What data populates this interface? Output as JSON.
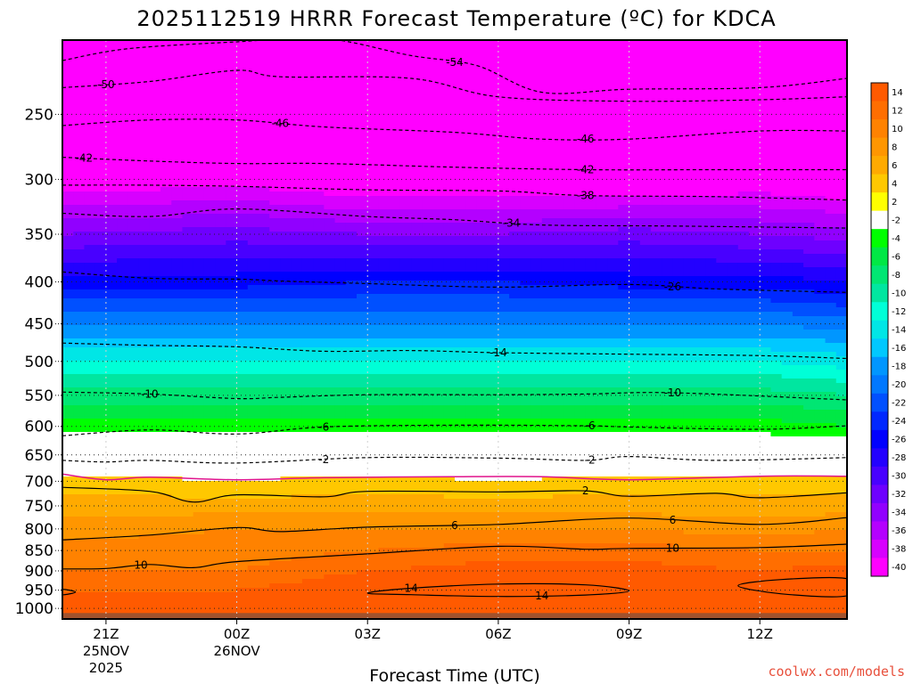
{
  "chart_data": {
    "type": "contour",
    "title": "2025112519 HRRR Forecast Temperature (ºC) for KDCA",
    "xlabel": "Forecast Time (UTC)",
    "ylabel": "",
    "credit": "coolwx.com/models",
    "x_hours": [
      -4,
      0,
      3,
      6,
      9,
      12,
      14
    ],
    "x_ticks": [
      {
        "hour": -3,
        "label": "21Z",
        "date": "25NOV",
        "year": "2025"
      },
      {
        "hour": 0,
        "label": "00Z",
        "date": "26NOV",
        "year": ""
      },
      {
        "hour": 3,
        "label": "03Z",
        "date": "",
        "year": ""
      },
      {
        "hour": 6,
        "label": "06Z",
        "date": "",
        "year": ""
      },
      {
        "hour": 9,
        "label": "09Z",
        "date": "",
        "year": ""
      },
      {
        "hour": 12,
        "label": "12Z",
        "date": "",
        "year": ""
      }
    ],
    "y_ticks": [
      {
        "label": "250",
        "p": 250
      },
      {
        "label": "300",
        "p": 300
      },
      {
        "label": "350",
        "p": 350
      },
      {
        "label": "400",
        "p": 400
      },
      {
        "label": "450",
        "p": 450
      },
      {
        "label": "500",
        "p": 500
      },
      {
        "label": "550",
        "p": 550
      },
      {
        "label": "600",
        "p": 600
      },
      {
        "label": "650",
        "p": 650
      },
      {
        "label": "700",
        "p": 700
      },
      {
        "label": "750",
        "p": 750
      },
      {
        "label": "800",
        "p": 800
      },
      {
        "label": "850",
        "p": 850
      },
      {
        "label": "900",
        "p": 900
      },
      {
        "label": "950",
        "p": 950
      },
      {
        "label": "1000",
        "p": 1000
      }
    ],
    "levels_hpa": [
      200,
      250,
      300,
      350,
      400,
      450,
      500,
      550,
      600,
      650,
      700,
      750,
      800,
      850,
      900,
      950,
      1000,
      1025
    ],
    "temperature_c": [
      [
        -57,
        -56,
        -58,
        -57,
        -57,
        -57,
        -57
      ],
      [
        -50,
        -49,
        -48,
        -48,
        -48,
        -48,
        -49
      ],
      [
        -42,
        -41,
        -43,
        -43,
        -43,
        -42,
        -43
      ],
      [
        -34,
        -33,
        -34,
        -34,
        -33,
        -34,
        -35
      ],
      [
        -27,
        -27,
        -26,
        -26,
        -27,
        -27,
        -28
      ],
      [
        -20,
        -20,
        -20,
        -20,
        -20,
        -20,
        -21
      ],
      [
        -14,
        -14,
        -14,
        -14,
        -14,
        -14,
        -15
      ],
      [
        -9,
        -9,
        -9,
        -9,
        -9,
        -9,
        -10
      ],
      [
        -5,
        -5,
        -5,
        -5,
        -5,
        -5,
        -6
      ],
      [
        -1,
        -1,
        -1,
        -1,
        -1,
        -1,
        -1
      ],
      [
        3,
        2,
        3,
        2,
        3,
        3,
        3
      ],
      [
        5,
        5,
        5,
        5,
        5,
        5,
        5
      ],
      [
        7,
        8,
        8,
        8,
        8,
        7,
        8
      ],
      [
        9,
        9,
        10,
        11,
        11,
        10,
        10
      ],
      [
        10,
        10,
        12,
        13,
        13,
        12,
        13
      ],
      [
        12,
        12,
        14,
        15,
        15,
        13,
        15
      ],
      [
        13,
        13,
        14,
        14,
        14,
        13,
        14
      ],
      [
        13,
        13,
        14,
        14,
        14,
        13,
        14
      ]
    ],
    "surface_hpa": 1013,
    "colorbar": {
      "labels": [
        "14",
        "12",
        "10",
        "8",
        "6",
        "4",
        "2",
        "-2",
        "-4",
        "-6",
        "-8",
        "-10",
        "-12",
        "-14",
        "-16",
        "-18",
        "-20",
        "-22",
        "-24",
        "-26",
        "-28",
        "-30",
        "-32",
        "-34",
        "-36",
        "-38",
        "-40"
      ],
      "colors": [
        "#ff5a00",
        "#ff6e00",
        "#ff8200",
        "#ff9600",
        "#ffaa00",
        "#ffc800",
        "#ffff00",
        "#ffffff",
        "#00ff00",
        "#00e845",
        "#00e673",
        "#00e6a0",
        "#00ffd7",
        "#00e6e6",
        "#00c8ff",
        "#0096ff",
        "#0078ff",
        "#0050ff",
        "#0028ff",
        "#0000ff",
        "#2300ff",
        "#4800ff",
        "#6e00ff",
        "#9100ff",
        "#b400ff",
        "#d700ff",
        "#ff00ff"
      ]
    },
    "contours": [
      {
        "value": -54,
        "label": "-54",
        "dashed": true,
        "points": [
          [
            -4,
            215
          ],
          [
            -2.5,
            208
          ],
          [
            0,
            204
          ],
          [
            2,
            202
          ],
          [
            4,
            212
          ],
          [
            5.5,
            218
          ],
          [
            7,
            235
          ],
          [
            9,
            233
          ],
          [
            12,
            232
          ],
          [
            14,
            226
          ]
        ]
      },
      {
        "value": -50,
        "label": "-50",
        "dashed": true,
        "points": [
          [
            -4,
            232
          ],
          [
            -2,
            228
          ],
          [
            0,
            221
          ],
          [
            1,
            225
          ],
          [
            4,
            226
          ],
          [
            6,
            238
          ],
          [
            9,
            241
          ],
          [
            12,
            240
          ],
          [
            14,
            238
          ]
        ]
      },
      {
        "value": -46,
        "label": "-46",
        "dashed": true,
        "points": [
          [
            -4,
            258
          ],
          [
            -2,
            254
          ],
          [
            0,
            254
          ],
          [
            2,
            259
          ],
          [
            5,
            263
          ],
          [
            7,
            268
          ],
          [
            9,
            268
          ],
          [
            12,
            262
          ],
          [
            14,
            262
          ]
        ]
      },
      {
        "value": -42,
        "label": "-42",
        "dashed": true,
        "points": [
          [
            -4,
            282
          ],
          [
            -2,
            285
          ],
          [
            0,
            287
          ],
          [
            2,
            287
          ],
          [
            5,
            290
          ],
          [
            8,
            292
          ],
          [
            11,
            292
          ],
          [
            14,
            292
          ]
        ]
      },
      {
        "value": -38,
        "label": "-38",
        "dashed": true,
        "points": [
          [
            -4,
            305
          ],
          [
            -2,
            305
          ],
          [
            0,
            306
          ],
          [
            3,
            309
          ],
          [
            6,
            310
          ],
          [
            8,
            314
          ],
          [
            11,
            315
          ],
          [
            14,
            318
          ]
        ]
      },
      {
        "value": -34,
        "label": "-34",
        "dashed": true,
        "points": [
          [
            -4,
            330
          ],
          [
            -2,
            333
          ],
          [
            0,
            326
          ],
          [
            3,
            333
          ],
          [
            5,
            336
          ],
          [
            7,
            341
          ],
          [
            10,
            342
          ],
          [
            14,
            344
          ]
        ]
      },
      {
        "value": -26,
        "label": "-26",
        "dashed": true,
        "points": [
          [
            -4,
            389
          ],
          [
            -2,
            396
          ],
          [
            0,
            397
          ],
          [
            1,
            399
          ],
          [
            3,
            402
          ],
          [
            6,
            406
          ],
          [
            9,
            403
          ],
          [
            11,
            408
          ],
          [
            14,
            412
          ]
        ]
      },
      {
        "value": -14,
        "label": "-14",
        "dashed": true,
        "points": [
          [
            -4,
            475
          ],
          [
            -2,
            478
          ],
          [
            0,
            480
          ],
          [
            2,
            486
          ],
          [
            4,
            485
          ],
          [
            6,
            488
          ],
          [
            9,
            490
          ],
          [
            12,
            492
          ],
          [
            14,
            496
          ]
        ]
      },
      {
        "value": -10,
        "label": "-10",
        "dashed": true,
        "points": [
          [
            -4,
            545
          ],
          [
            -2,
            548
          ],
          [
            0,
            555
          ],
          [
            1,
            553
          ],
          [
            3,
            549
          ],
          [
            6,
            549
          ],
          [
            8,
            548
          ],
          [
            10,
            546
          ],
          [
            14,
            557
          ]
        ]
      },
      {
        "value": -6,
        "label": "-6",
        "dashed": true,
        "points": [
          [
            -4,
            616
          ],
          [
            -2,
            606
          ],
          [
            0,
            613
          ],
          [
            2,
            601
          ],
          [
            5,
            598
          ],
          [
            8,
            599
          ],
          [
            9,
            601
          ],
          [
            12,
            605
          ],
          [
            14,
            599
          ]
        ]
      },
      {
        "value": -2,
        "label": "-2",
        "dashed": true,
        "points": [
          [
            -4,
            660
          ],
          [
            -3,
            663
          ],
          [
            -2,
            660
          ],
          [
            0,
            665
          ],
          [
            3,
            655
          ],
          [
            6,
            656
          ],
          [
            8,
            660
          ],
          [
            9,
            653
          ],
          [
            11,
            660
          ],
          [
            14,
            655
          ]
        ]
      },
      {
        "value": 0,
        "label": "",
        "dashed": false,
        "color": "#e0148c",
        "points": [
          [
            -4,
            686
          ],
          [
            -3,
            697
          ],
          [
            -2,
            692
          ],
          [
            0,
            697
          ],
          [
            2,
            693
          ],
          [
            5,
            691
          ],
          [
            7,
            691
          ],
          [
            9,
            697
          ],
          [
            12,
            690
          ],
          [
            14,
            690
          ]
        ]
      },
      {
        "value": 2,
        "label": "2",
        "dashed": false,
        "points": [
          [
            -4,
            712
          ],
          [
            -2,
            720
          ],
          [
            -1,
            742
          ],
          [
            0,
            727
          ],
          [
            2,
            731
          ],
          [
            3,
            720
          ],
          [
            6,
            721
          ],
          [
            8,
            719
          ],
          [
            9,
            730
          ],
          [
            11,
            724
          ],
          [
            12,
            733
          ],
          [
            14,
            723
          ]
        ]
      },
      {
        "value": 6,
        "label": "6",
        "dashed": false,
        "points": [
          [
            -4,
            825
          ],
          [
            -2,
            814
          ],
          [
            0,
            797
          ],
          [
            1,
            806
          ],
          [
            3,
            796
          ],
          [
            6,
            790
          ],
          [
            9,
            776
          ],
          [
            12,
            790
          ],
          [
            14,
            775
          ]
        ]
      },
      {
        "value": 10,
        "label": "10",
        "dashed": false,
        "points": [
          [
            -4,
            895
          ],
          [
            -3,
            894
          ],
          [
            -2,
            884
          ],
          [
            -1,
            892
          ],
          [
            0,
            877
          ],
          [
            3,
            858
          ],
          [
            6,
            840
          ],
          [
            8,
            847
          ],
          [
            9,
            845
          ],
          [
            12,
            843
          ],
          [
            14,
            835
          ]
        ]
      },
      {
        "value": 14,
        "label": "14",
        "dashed": false,
        "closed": true,
        "points": [
          [
            3,
            958
          ],
          [
            4,
            945
          ],
          [
            6,
            934
          ],
          [
            8,
            936
          ],
          [
            9,
            952
          ],
          [
            8,
            963
          ],
          [
            6,
            967
          ],
          [
            4,
            962
          ]
        ]
      },
      {
        "value": 14,
        "label": "",
        "dashed": false,
        "closed": true,
        "points": [
          [
            11.5,
            938
          ],
          [
            12.5,
            922
          ],
          [
            14,
            920
          ],
          [
            14,
            965
          ],
          [
            12.5,
            960
          ]
        ]
      },
      {
        "value": 14,
        "label": "",
        "dashed": false,
        "closed": true,
        "points": [
          [
            -4,
            948
          ],
          [
            -3.7,
            955
          ],
          [
            -4,
            962
          ]
        ]
      }
    ]
  }
}
